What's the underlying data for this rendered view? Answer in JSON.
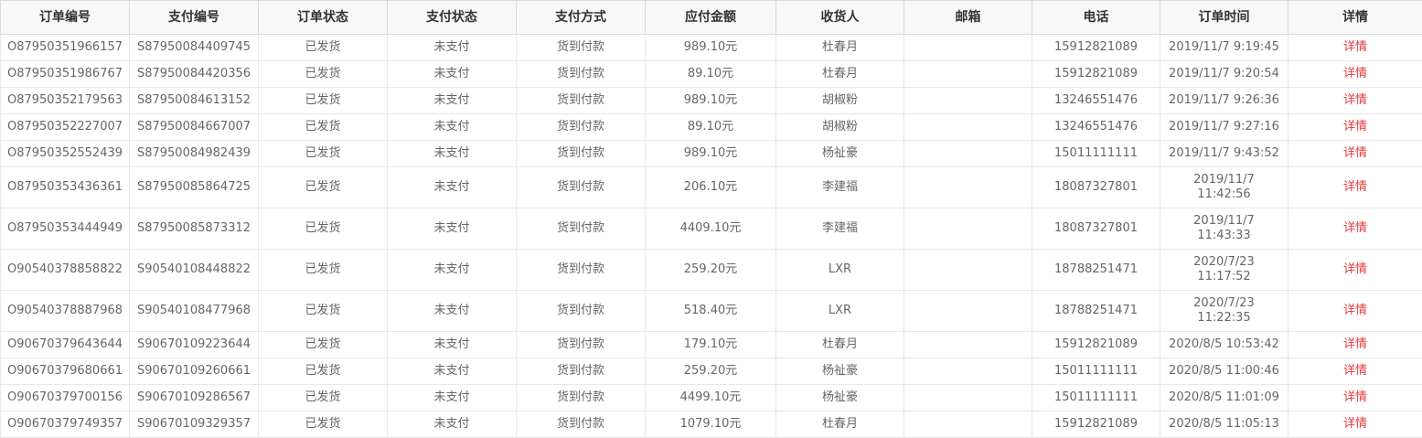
{
  "colors": {
    "accent_red": "#e4393c",
    "header_bg": "#f8f8f8",
    "header_text": "#333333",
    "body_text": "#666666",
    "row_border": "#e8e8e8",
    "header_border": "#d9d9d9"
  },
  "table": {
    "columns": [
      {
        "key": "order_no",
        "label": "订单编号"
      },
      {
        "key": "pay_no",
        "label": "支付编号"
      },
      {
        "key": "order_status",
        "label": "订单状态"
      },
      {
        "key": "pay_status",
        "label": "支付状态"
      },
      {
        "key": "pay_method",
        "label": "支付方式"
      },
      {
        "key": "amount",
        "label": "应付金额"
      },
      {
        "key": "consignee",
        "label": "收货人"
      },
      {
        "key": "email",
        "label": "邮箱"
      },
      {
        "key": "phone",
        "label": "电话"
      },
      {
        "key": "time",
        "label": "订单时间"
      },
      {
        "key": "detail",
        "label": "详情"
      }
    ],
    "rows": [
      {
        "order_no": "O87950351966157",
        "pay_no": "S87950084409745",
        "order_status": "已发货",
        "pay_status": "未支付",
        "pay_method": "货到付款",
        "amount": "989.10元",
        "consignee": "杜春月",
        "email": "",
        "phone": "15912821089",
        "time": "2019/11/7 9:19:45",
        "detail": "详情"
      },
      {
        "order_no": "O87950351986767",
        "pay_no": "S87950084420356",
        "order_status": "已发货",
        "pay_status": "未支付",
        "pay_method": "货到付款",
        "amount": "89.10元",
        "consignee": "杜春月",
        "email": "",
        "phone": "15912821089",
        "time": "2019/11/7 9:20:54",
        "detail": "详情"
      },
      {
        "order_no": "O87950352179563",
        "pay_no": "S87950084613152",
        "order_status": "已发货",
        "pay_status": "未支付",
        "pay_method": "货到付款",
        "amount": "989.10元",
        "consignee": "胡椒粉",
        "email": "",
        "phone": "13246551476",
        "time": "2019/11/7 9:26:36",
        "detail": "详情"
      },
      {
        "order_no": "O87950352227007",
        "pay_no": "S87950084667007",
        "order_status": "已发货",
        "pay_status": "未支付",
        "pay_method": "货到付款",
        "amount": "89.10元",
        "consignee": "胡椒粉",
        "email": "",
        "phone": "13246551476",
        "time": "2019/11/7 9:27:16",
        "detail": "详情"
      },
      {
        "order_no": "O87950352552439",
        "pay_no": "S87950084982439",
        "order_status": "已发货",
        "pay_status": "未支付",
        "pay_method": "货到付款",
        "amount": "989.10元",
        "consignee": "杨祉豪",
        "email": "",
        "phone": "15011111111",
        "time": "2019/11/7 9:43:52",
        "detail": "详情"
      },
      {
        "order_no": "O87950353436361",
        "pay_no": "S87950085864725",
        "order_status": "已发货",
        "pay_status": "未支付",
        "pay_method": "货到付款",
        "amount": "206.10元",
        "consignee": "李建福",
        "email": "",
        "phone": "18087327801",
        "time": "2019/11/7 11:42:56",
        "detail": "详情"
      },
      {
        "order_no": "O87950353444949",
        "pay_no": "S87950085873312",
        "order_status": "已发货",
        "pay_status": "未支付",
        "pay_method": "货到付款",
        "amount": "4409.10元",
        "consignee": "李建福",
        "email": "",
        "phone": "18087327801",
        "time": "2019/11/7 11:43:33",
        "detail": "详情"
      },
      {
        "order_no": "O90540378858822",
        "pay_no": "S90540108448822",
        "order_status": "已发货",
        "pay_status": "未支付",
        "pay_method": "货到付款",
        "amount": "259.20元",
        "consignee": "LXR",
        "email": "",
        "phone": "18788251471",
        "time": "2020/7/23 11:17:52",
        "detail": "详情"
      },
      {
        "order_no": "O90540378887968",
        "pay_no": "S90540108477968",
        "order_status": "已发货",
        "pay_status": "未支付",
        "pay_method": "货到付款",
        "amount": "518.40元",
        "consignee": "LXR",
        "email": "",
        "phone": "18788251471",
        "time": "2020/7/23 11:22:35",
        "detail": "详情"
      },
      {
        "order_no": "O90670379643644",
        "pay_no": "S90670109223644",
        "order_status": "已发货",
        "pay_status": "未支付",
        "pay_method": "货到付款",
        "amount": "179.10元",
        "consignee": "杜春月",
        "email": "",
        "phone": "15912821089",
        "time": "2020/8/5 10:53:42",
        "detail": "详情"
      },
      {
        "order_no": "O90670379680661",
        "pay_no": "S90670109260661",
        "order_status": "已发货",
        "pay_status": "未支付",
        "pay_method": "货到付款",
        "amount": "259.20元",
        "consignee": "杨祉豪",
        "email": "",
        "phone": "15011111111",
        "time": "2020/8/5 11:00:46",
        "detail": "详情"
      },
      {
        "order_no": "O90670379700156",
        "pay_no": "S90670109286567",
        "order_status": "已发货",
        "pay_status": "未支付",
        "pay_method": "货到付款",
        "amount": "4499.10元",
        "consignee": "杨祉豪",
        "email": "",
        "phone": "15011111111",
        "time": "2020/8/5 11:01:09",
        "detail": "详情"
      },
      {
        "order_no": "O90670379749357",
        "pay_no": "S90670109329357",
        "order_status": "已发货",
        "pay_status": "未支付",
        "pay_method": "货到付款",
        "amount": "1079.10元",
        "consignee": "杜春月",
        "email": "",
        "phone": "15912821089",
        "time": "2020/8/5 11:05:13",
        "detail": "详情"
      }
    ]
  }
}
